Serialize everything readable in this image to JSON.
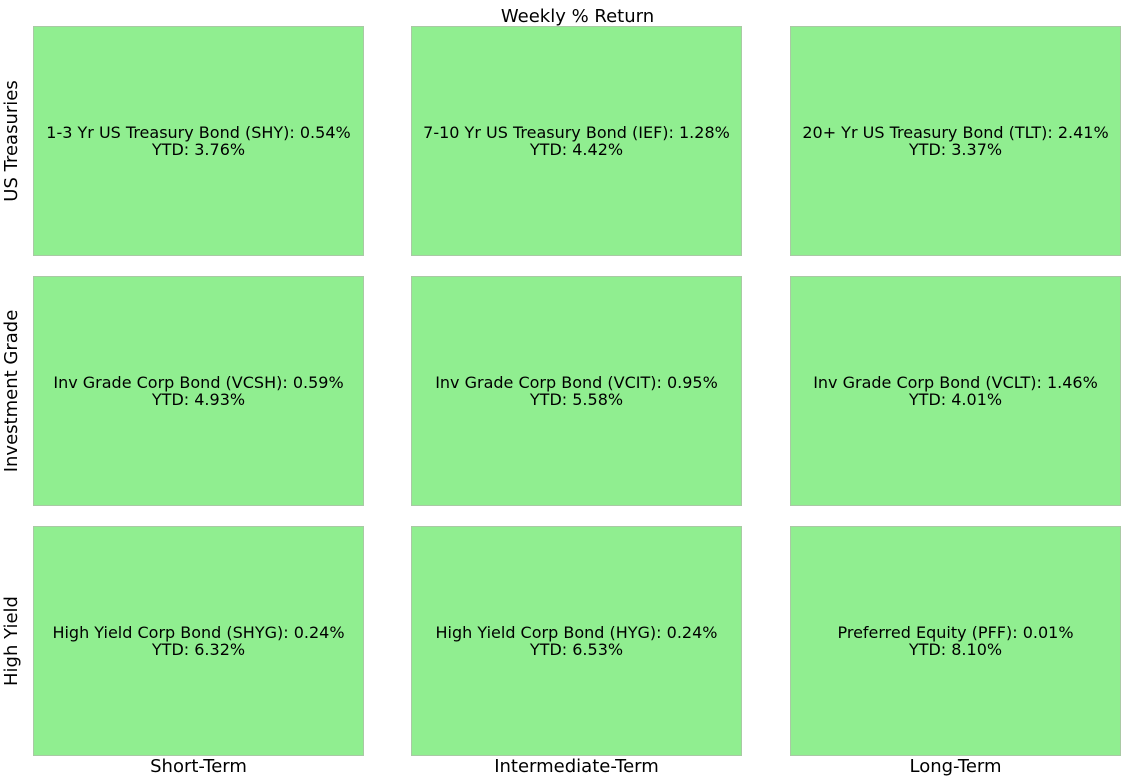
{
  "chart_data": {
    "type": "table",
    "title": "Weekly % Return",
    "columns": [
      "Short-Term",
      "Intermediate-Term",
      "Long-Term"
    ],
    "rows": [
      "US Treasuries",
      "Investment Grade",
      "High Yield"
    ],
    "cell_color": "#90ee90",
    "cells": [
      [
        {
          "name": "1-3 Yr US Treasury Bond (SHY)",
          "weekly": "0.54%",
          "ytd": "3.76%"
        },
        {
          "name": "7-10 Yr US Treasury Bond (IEF)",
          "weekly": "1.28%",
          "ytd": "4.42%"
        },
        {
          "name": "20+ Yr US Treasury Bond (TLT)",
          "weekly": "2.41%",
          "ytd": "3.37%"
        }
      ],
      [
        {
          "name": "Inv Grade Corp Bond (VCSH)",
          "weekly": "0.59%",
          "ytd": "4.93%"
        },
        {
          "name": "Inv Grade Corp Bond (VCIT)",
          "weekly": "0.95%",
          "ytd": "5.58%"
        },
        {
          "name": "Inv Grade Corp Bond (VCLT)",
          "weekly": "1.46%",
          "ytd": "4.01%"
        }
      ],
      [
        {
          "name": "High Yield Corp Bond (SHYG)",
          "weekly": "0.24%",
          "ytd": "6.32%"
        },
        {
          "name": "High Yield Corp Bond (HYG)",
          "weekly": "0.24%",
          "ytd": "6.53%"
        },
        {
          "name": "Preferred Equity (PFF)",
          "weekly": "0.01%",
          "ytd": "8.10%"
        }
      ]
    ]
  }
}
